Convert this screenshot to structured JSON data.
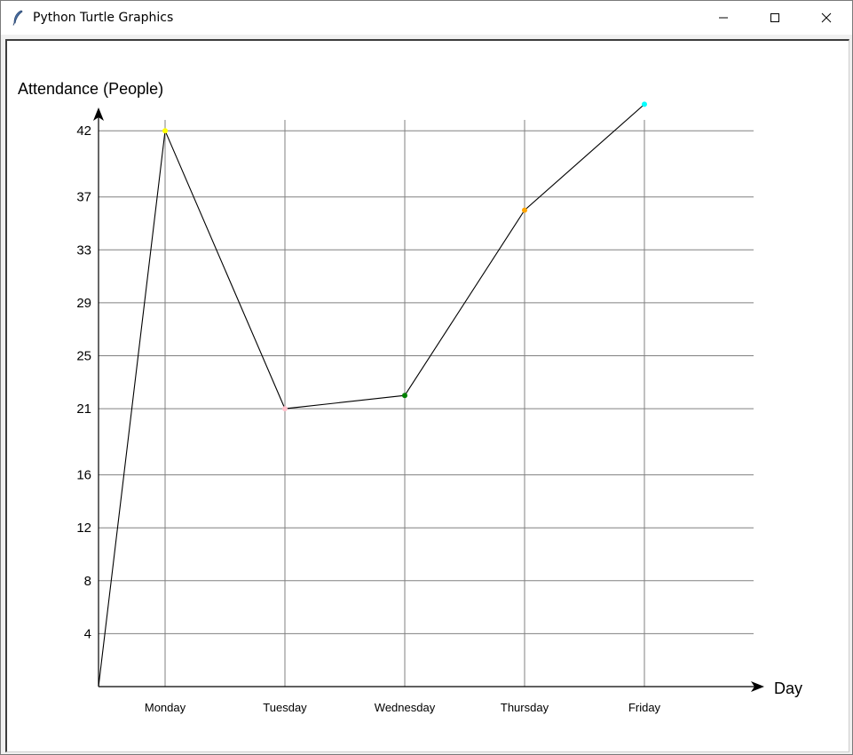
{
  "window": {
    "title": "Python Turtle Graphics",
    "app_icon": "feather-icon",
    "controls": {
      "minimize_icon": "minimize-icon",
      "maximize_icon": "maximize-icon",
      "close_icon": "close-icon"
    }
  },
  "chart_data": {
    "type": "line",
    "title": "",
    "ylabel": "Attendance (People)",
    "xlabel": "Day",
    "categories": [
      "Monday",
      "Tuesday",
      "Wednesday",
      "Thursday",
      "Friday"
    ],
    "y_ticks": [
      "4",
      "8",
      "12",
      "16",
      "21",
      "25",
      "29",
      "33",
      "37",
      "42"
    ],
    "y_tick_values": [
      4,
      8,
      12,
      16,
      21,
      25,
      29,
      33,
      37,
      42
    ],
    "ylim": [
      0,
      42
    ],
    "values": [
      42,
      21,
      22,
      36,
      44
    ],
    "point_colors": [
      "#ffff00",
      "#ffc0cb",
      "#008000",
      "#ffa500",
      "#00ffff"
    ],
    "line_color": "#000000",
    "grid": true,
    "grid_color": "#808080",
    "legend": "none"
  }
}
